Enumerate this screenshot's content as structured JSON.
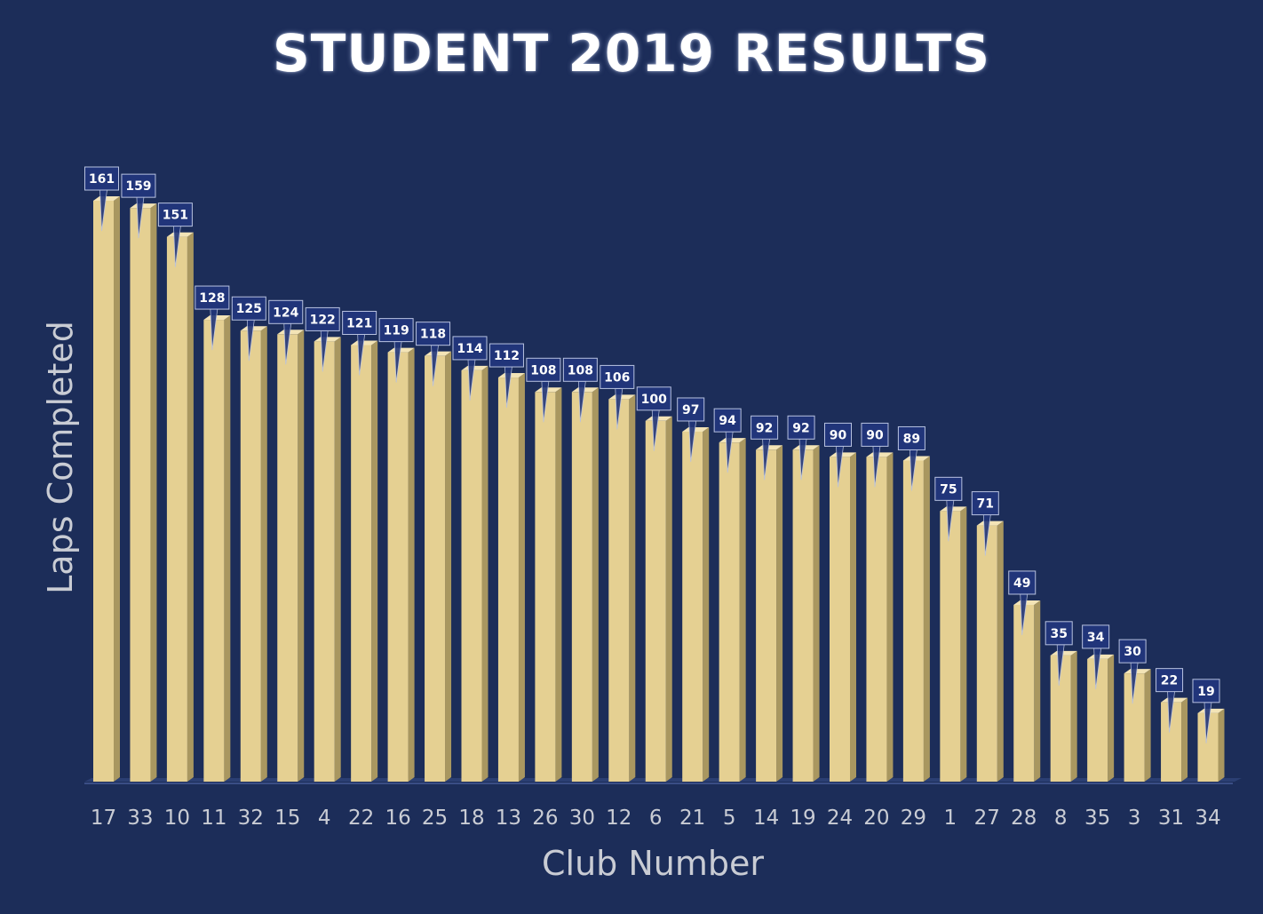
{
  "chart_data": {
    "type": "bar",
    "title": "STUDENT 2019 RESULTS",
    "xlabel": "Club Number",
    "ylabel": "Laps Completed",
    "categories": [
      "17",
      "33",
      "10",
      "11",
      "32",
      "15",
      "4",
      "22",
      "16",
      "25",
      "18",
      "13",
      "26",
      "30",
      "12",
      "6",
      "21",
      "5",
      "14",
      "19",
      "24",
      "20",
      "29",
      "1",
      "27",
      "28",
      "8",
      "35",
      "3",
      "31",
      "34"
    ],
    "values": [
      161,
      159,
      151,
      128,
      125,
      124,
      122,
      121,
      119,
      118,
      114,
      112,
      108,
      108,
      106,
      100,
      97,
      94,
      92,
      92,
      90,
      90,
      89,
      75,
      71,
      49,
      35,
      34,
      30,
      22,
      19
    ],
    "ylim": [
      0,
      161
    ],
    "grid": false,
    "legend": "none",
    "data_labels": true
  },
  "colors": {
    "background": "#1c2d59",
    "bar_front": "#e5d092",
    "bar_side": "#a99760",
    "bar_top": "#f3e4b6",
    "label_box": "#21357a",
    "label_border": "#b8c2e0",
    "text": "#c9ccd4",
    "title": "#ffffff"
  }
}
